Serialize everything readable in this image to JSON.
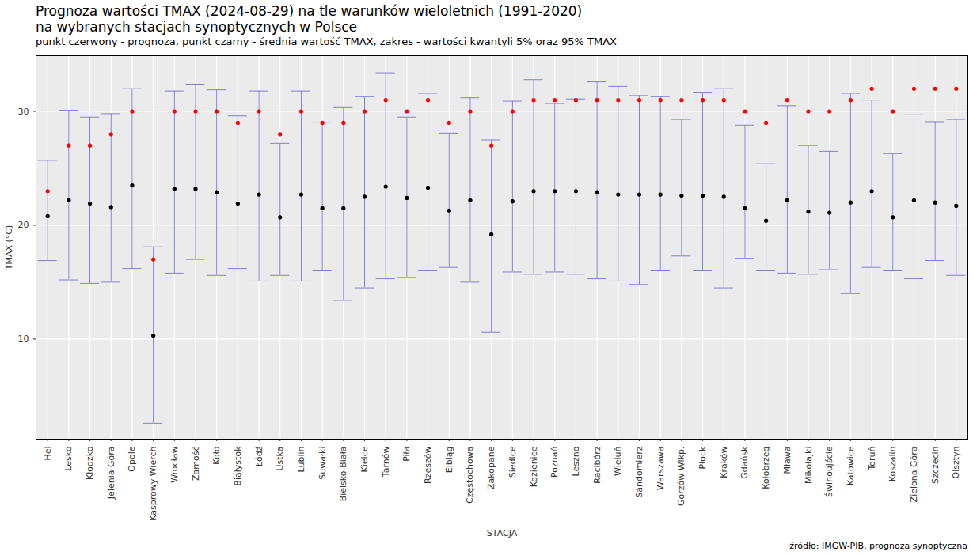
{
  "chart_data": {
    "type": "errorbar",
    "title": "Prognoza wartości TMAX (2024-08-29) na tle warunków wieloletnich (1991-2020)\nna wybranych stacjach synoptycznych w Polsce",
    "subtitle": "punkt czerwony - prognoza, punkt czarny - średnia wartość TMAX, zakres - wartości kwantyli 5% oraz 95% TMAX",
    "caption": "źródło: IMGW-PIB, prognoza synoptyczna",
    "x_label": "STACJA",
    "y_label": "TMAX (°C)",
    "categories": [
      "Hel",
      "Lesko",
      "Kłodzko",
      "Jelenia Góra",
      "Opole",
      "Kasprowy Wierch",
      "Wrocław",
      "Zamość",
      "Koło",
      "Białystok",
      "Łódź",
      "Ustka",
      "Lublin",
      "Suwałki",
      "Bielsko-Biała",
      "Kielce",
      "Tarnów",
      "Piła",
      "Rzeszów",
      "Elbląg",
      "Częstochowa",
      "Zakopane",
      "Siedlce",
      "Kozienice",
      "Poznań",
      "Leszno",
      "Racibórz",
      "Wieluń",
      "Sandomierz",
      "Warszawa",
      "Gorzów Wlkp.",
      "Płock",
      "Kraków",
      "Gdańsk",
      "Kołobrzeg",
      "Mława",
      "Mikołajki",
      "Świnoujście",
      "Katowice",
      "Toruń",
      "Koszalin",
      "Zielona Góra",
      "Szczecin",
      "Olsztyn"
    ],
    "series": [
      {
        "color": "#ff0000",
        "marker": "circle",
        "values": [
          23,
          27,
          27,
          28,
          30,
          17,
          30,
          30,
          30,
          29,
          30,
          28,
          30,
          29,
          29,
          30,
          31,
          30,
          31,
          29,
          30,
          27,
          30,
          31,
          31,
          31,
          31,
          31,
          31,
          31,
          31,
          31,
          31,
          30,
          29,
          31,
          30,
          30,
          31,
          32,
          30,
          32,
          32,
          32
        ]
      },
      {
        "color": "#000000",
        "marker": "circle",
        "values": [
          20.8,
          22.2,
          21.9,
          21.6,
          23.5,
          10.3,
          23.2,
          23.2,
          22.9,
          21.9,
          22.7,
          20.7,
          22.7,
          21.5,
          21.5,
          22.5,
          23.4,
          22.4,
          23.3,
          21.3,
          22.2,
          19.2,
          22.1,
          23.0,
          23.0,
          23.0,
          22.9,
          22.7,
          22.7,
          22.7,
          22.6,
          22.6,
          22.5,
          21.5,
          20.4,
          22.2,
          21.2,
          21.1,
          22.0,
          23.0,
          20.7,
          22.2,
          22.0,
          21.7
        ]
      }
    ],
    "error_range": {
      "color": "#7f7fd4",
      "low": [
        16.9,
        15.2,
        14.9,
        15.0,
        16.2,
        2.6,
        15.8,
        17.0,
        15.6,
        16.2,
        15.1,
        15.6,
        15.1,
        16.0,
        13.4,
        14.5,
        15.3,
        15.4,
        16.0,
        16.3,
        15.0,
        10.6,
        15.9,
        15.7,
        15.9,
        15.7,
        15.3,
        15.1,
        14.8,
        16.0,
        17.3,
        16.0,
        14.5,
        17.1,
        16.0,
        15.8,
        15.7,
        16.1,
        14.0,
        16.3,
        16.0,
        15.3,
        16.9,
        15.6
      ],
      "high": [
        25.7,
        30.1,
        29.5,
        29.8,
        32.0,
        18.1,
        31.8,
        32.4,
        31.9,
        29.6,
        31.8,
        27.2,
        31.8,
        29.0,
        30.4,
        31.3,
        33.4,
        29.5,
        31.6,
        28.1,
        31.2,
        27.5,
        30.9,
        32.8,
        30.7,
        31.1,
        32.6,
        32.2,
        31.4,
        31.3,
        29.3,
        31.7,
        32.0,
        28.8,
        25.4,
        30.5,
        27.0,
        26.5,
        31.6,
        31.0,
        26.3,
        29.7,
        29.1,
        29.3
      ]
    },
    "ylim": [
      1.2,
      34.9
    ],
    "yticks": [
      10,
      20,
      30
    ],
    "grid": true
  }
}
